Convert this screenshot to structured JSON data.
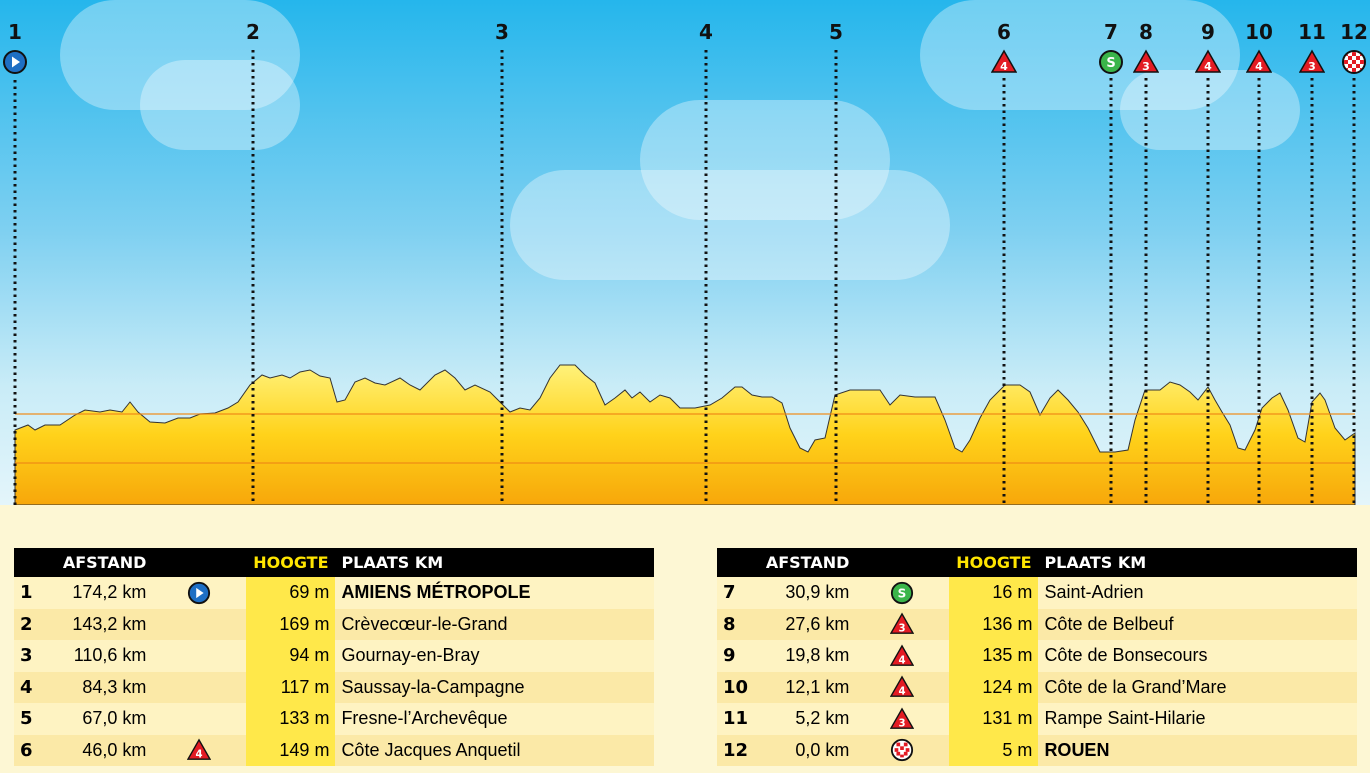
{
  "markers": [
    {
      "num": "1",
      "icon": "start-icon"
    },
    {
      "num": "2",
      "icon": ""
    },
    {
      "num": "3",
      "icon": ""
    },
    {
      "num": "4",
      "icon": ""
    },
    {
      "num": "5",
      "icon": ""
    },
    {
      "num": "6",
      "icon": "climb-cat4-icon",
      "cat": "4"
    },
    {
      "num": "7",
      "icon": "sprint-icon",
      "label": "S"
    },
    {
      "num": "8",
      "icon": "climb-cat3-icon",
      "cat": "3"
    },
    {
      "num": "9",
      "icon": "climb-cat4-icon",
      "cat": "4"
    },
    {
      "num": "10",
      "icon": "climb-cat4-icon",
      "cat": "4"
    },
    {
      "num": "11",
      "icon": "climb-cat3-icon",
      "cat": "3"
    },
    {
      "num": "12",
      "icon": "finish-icon"
    }
  ],
  "table_headers": {
    "afstand": "AFSTAND",
    "hoogte": "HOOGTE",
    "plaats": "PLAATS KM"
  },
  "rows": [
    {
      "num": "1",
      "dist": "174,2 km",
      "icon": "start-icon",
      "alt": "69 m",
      "place": "AMIENS MÉTROPOLE",
      "bold": true
    },
    {
      "num": "2",
      "dist": "143,2 km",
      "icon": "",
      "alt": "169 m",
      "place": "Crèvecœur-le-Grand",
      "bold": false
    },
    {
      "num": "3",
      "dist": "110,6 km",
      "icon": "",
      "alt": "94 m",
      "place": "Gournay-en-Bray",
      "bold": false
    },
    {
      "num": "4",
      "dist": "84,3 km",
      "icon": "",
      "alt": "117 m",
      "place": "Saussay-la-Campagne",
      "bold": false
    },
    {
      "num": "5",
      "dist": "67,0 km",
      "icon": "",
      "alt": "133 m",
      "place": "Fresne-l’Archevêque",
      "bold": false
    },
    {
      "num": "6",
      "dist": "46,0 km",
      "icon": "climb-cat4-icon",
      "alt": "149 m",
      "place": "Côte Jacques Anquetil",
      "bold": false
    },
    {
      "num": "7",
      "dist": "30,9 km",
      "icon": "sprint-icon",
      "alt": "16 m",
      "place": "Saint-Adrien",
      "bold": false
    },
    {
      "num": "8",
      "dist": "27,6 km",
      "icon": "climb-cat3-icon",
      "alt": "136 m",
      "place": "Côte de Belbeuf",
      "bold": false
    },
    {
      "num": "9",
      "dist": "19,8 km",
      "icon": "climb-cat4-icon",
      "alt": "135 m",
      "place": "Côte de Bonsecours",
      "bold": false
    },
    {
      "num": "10",
      "dist": "12,1 km",
      "icon": "climb-cat4-icon",
      "alt": "124 m",
      "place": "Côte de la Grand’Mare",
      "bold": false
    },
    {
      "num": "11",
      "dist": "5,2 km",
      "icon": "climb-cat3-icon",
      "alt": "131 m",
      "place": "Rampe Saint-Hilarie",
      "bold": false
    },
    {
      "num": "12",
      "dist": "0,0 km",
      "icon": "finish-icon",
      "alt": "5 m",
      "place": "ROUEN",
      "bold": true
    }
  ],
  "colors": {
    "sky_top": "#25b6ec",
    "profile_fill": "#ffd21a",
    "start": "#1e6fc4",
    "sprint": "#3ab54a",
    "climb": "#e31b23",
    "header_bg": "#000000",
    "hoogte_highlight": "#ffe84a"
  }
}
